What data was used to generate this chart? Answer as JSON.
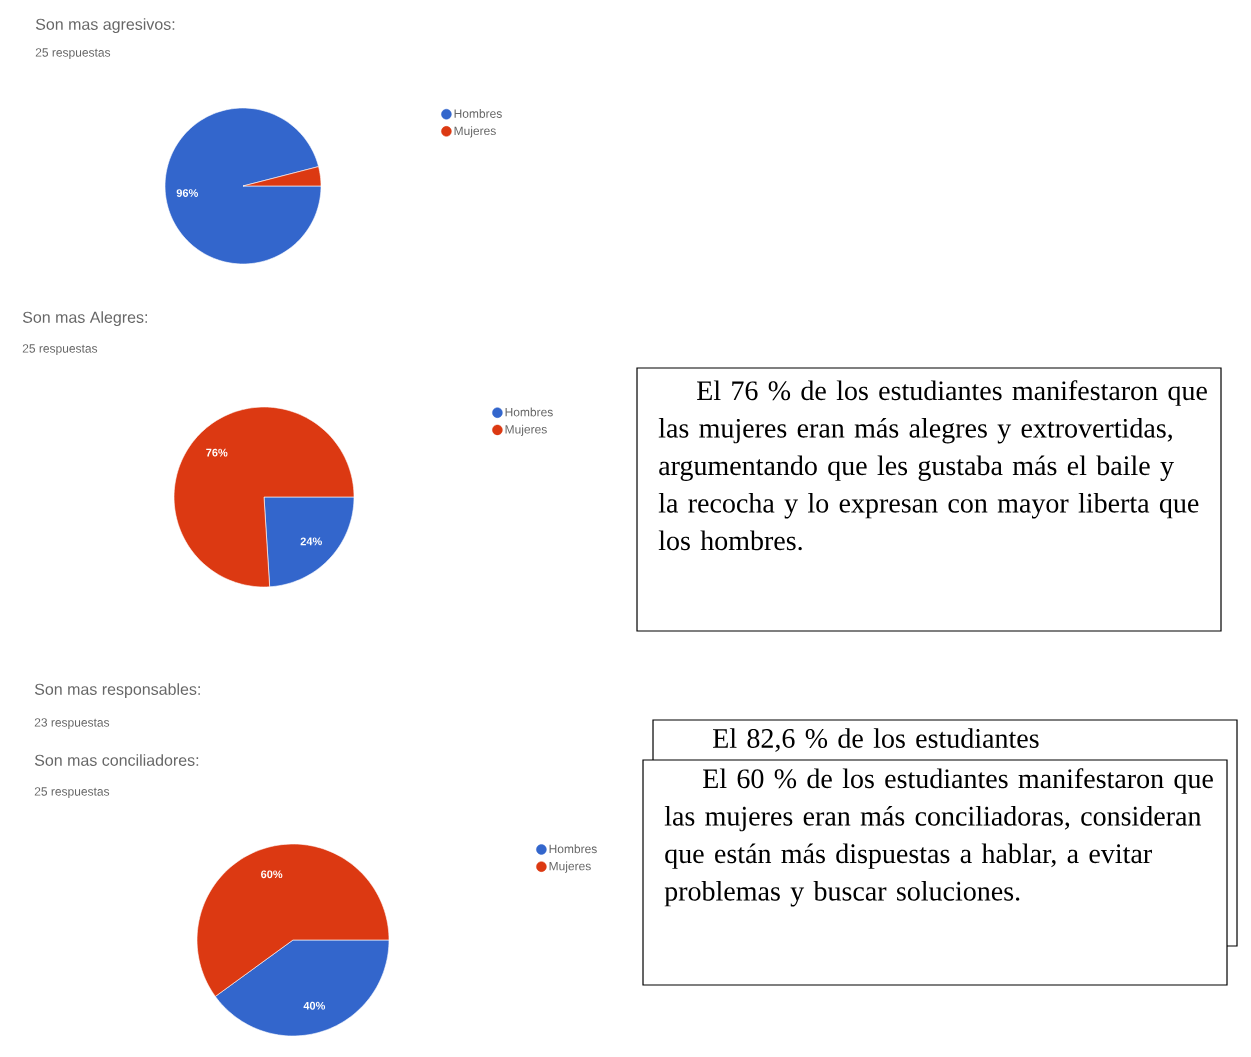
{
  "chart_data": [
    {
      "type": "pie",
      "title": "Son mas agresivos:",
      "subtitle": "25 respuestas",
      "categories": [
        "Hombres",
        "Mujeres"
      ],
      "values": [
        96,
        4
      ],
      "colors": [
        "#3366cc",
        "#dc3912"
      ],
      "value_labels": [
        "96%",
        null
      ],
      "legend": "right"
    },
    {
      "type": "pie",
      "title": "Son mas Alegres:",
      "subtitle": "25 respuestas",
      "categories": [
        "Hombres",
        "Mujeres"
      ],
      "values": [
        24,
        76
      ],
      "colors": [
        "#3366cc",
        "#dc3912"
      ],
      "value_labels": [
        "24%",
        "76%"
      ],
      "legend": "right"
    },
    {
      "type": "other",
      "annotations": [
        "El 76 % de los estudiantes manifestaron que las mujeres eran más alegres y extrovertidas, argumentando que les gustaba más el baile y la recocha y lo expresan con mayor liberta que los hombres."
      ]
    },
    {
      "type": "other",
      "title": "Son mas responsables:",
      "subtitle": "23 respuestas"
    },
    {
      "type": "other",
      "annotations": [
        "El 82,6 % de los estudiantes"
      ]
    },
    {
      "type": "pie",
      "title": "Son mas conciliadores:",
      "subtitle": "25 respuestas",
      "categories": [
        "Hombres",
        "Mujeres"
      ],
      "values": [
        40,
        60
      ],
      "colors": [
        "#3366cc",
        "#dc3912"
      ],
      "value_labels": [
        "40%",
        "60%"
      ],
      "legend": "right"
    },
    {
      "type": "other",
      "annotations": [
        "El 60 % de los estudiantes manifestaron que las mujeres eran más conciliadoras, consideran que están más dispuestas a hablar, a evitar problemas y buscar soluciones."
      ]
    }
  ]
}
